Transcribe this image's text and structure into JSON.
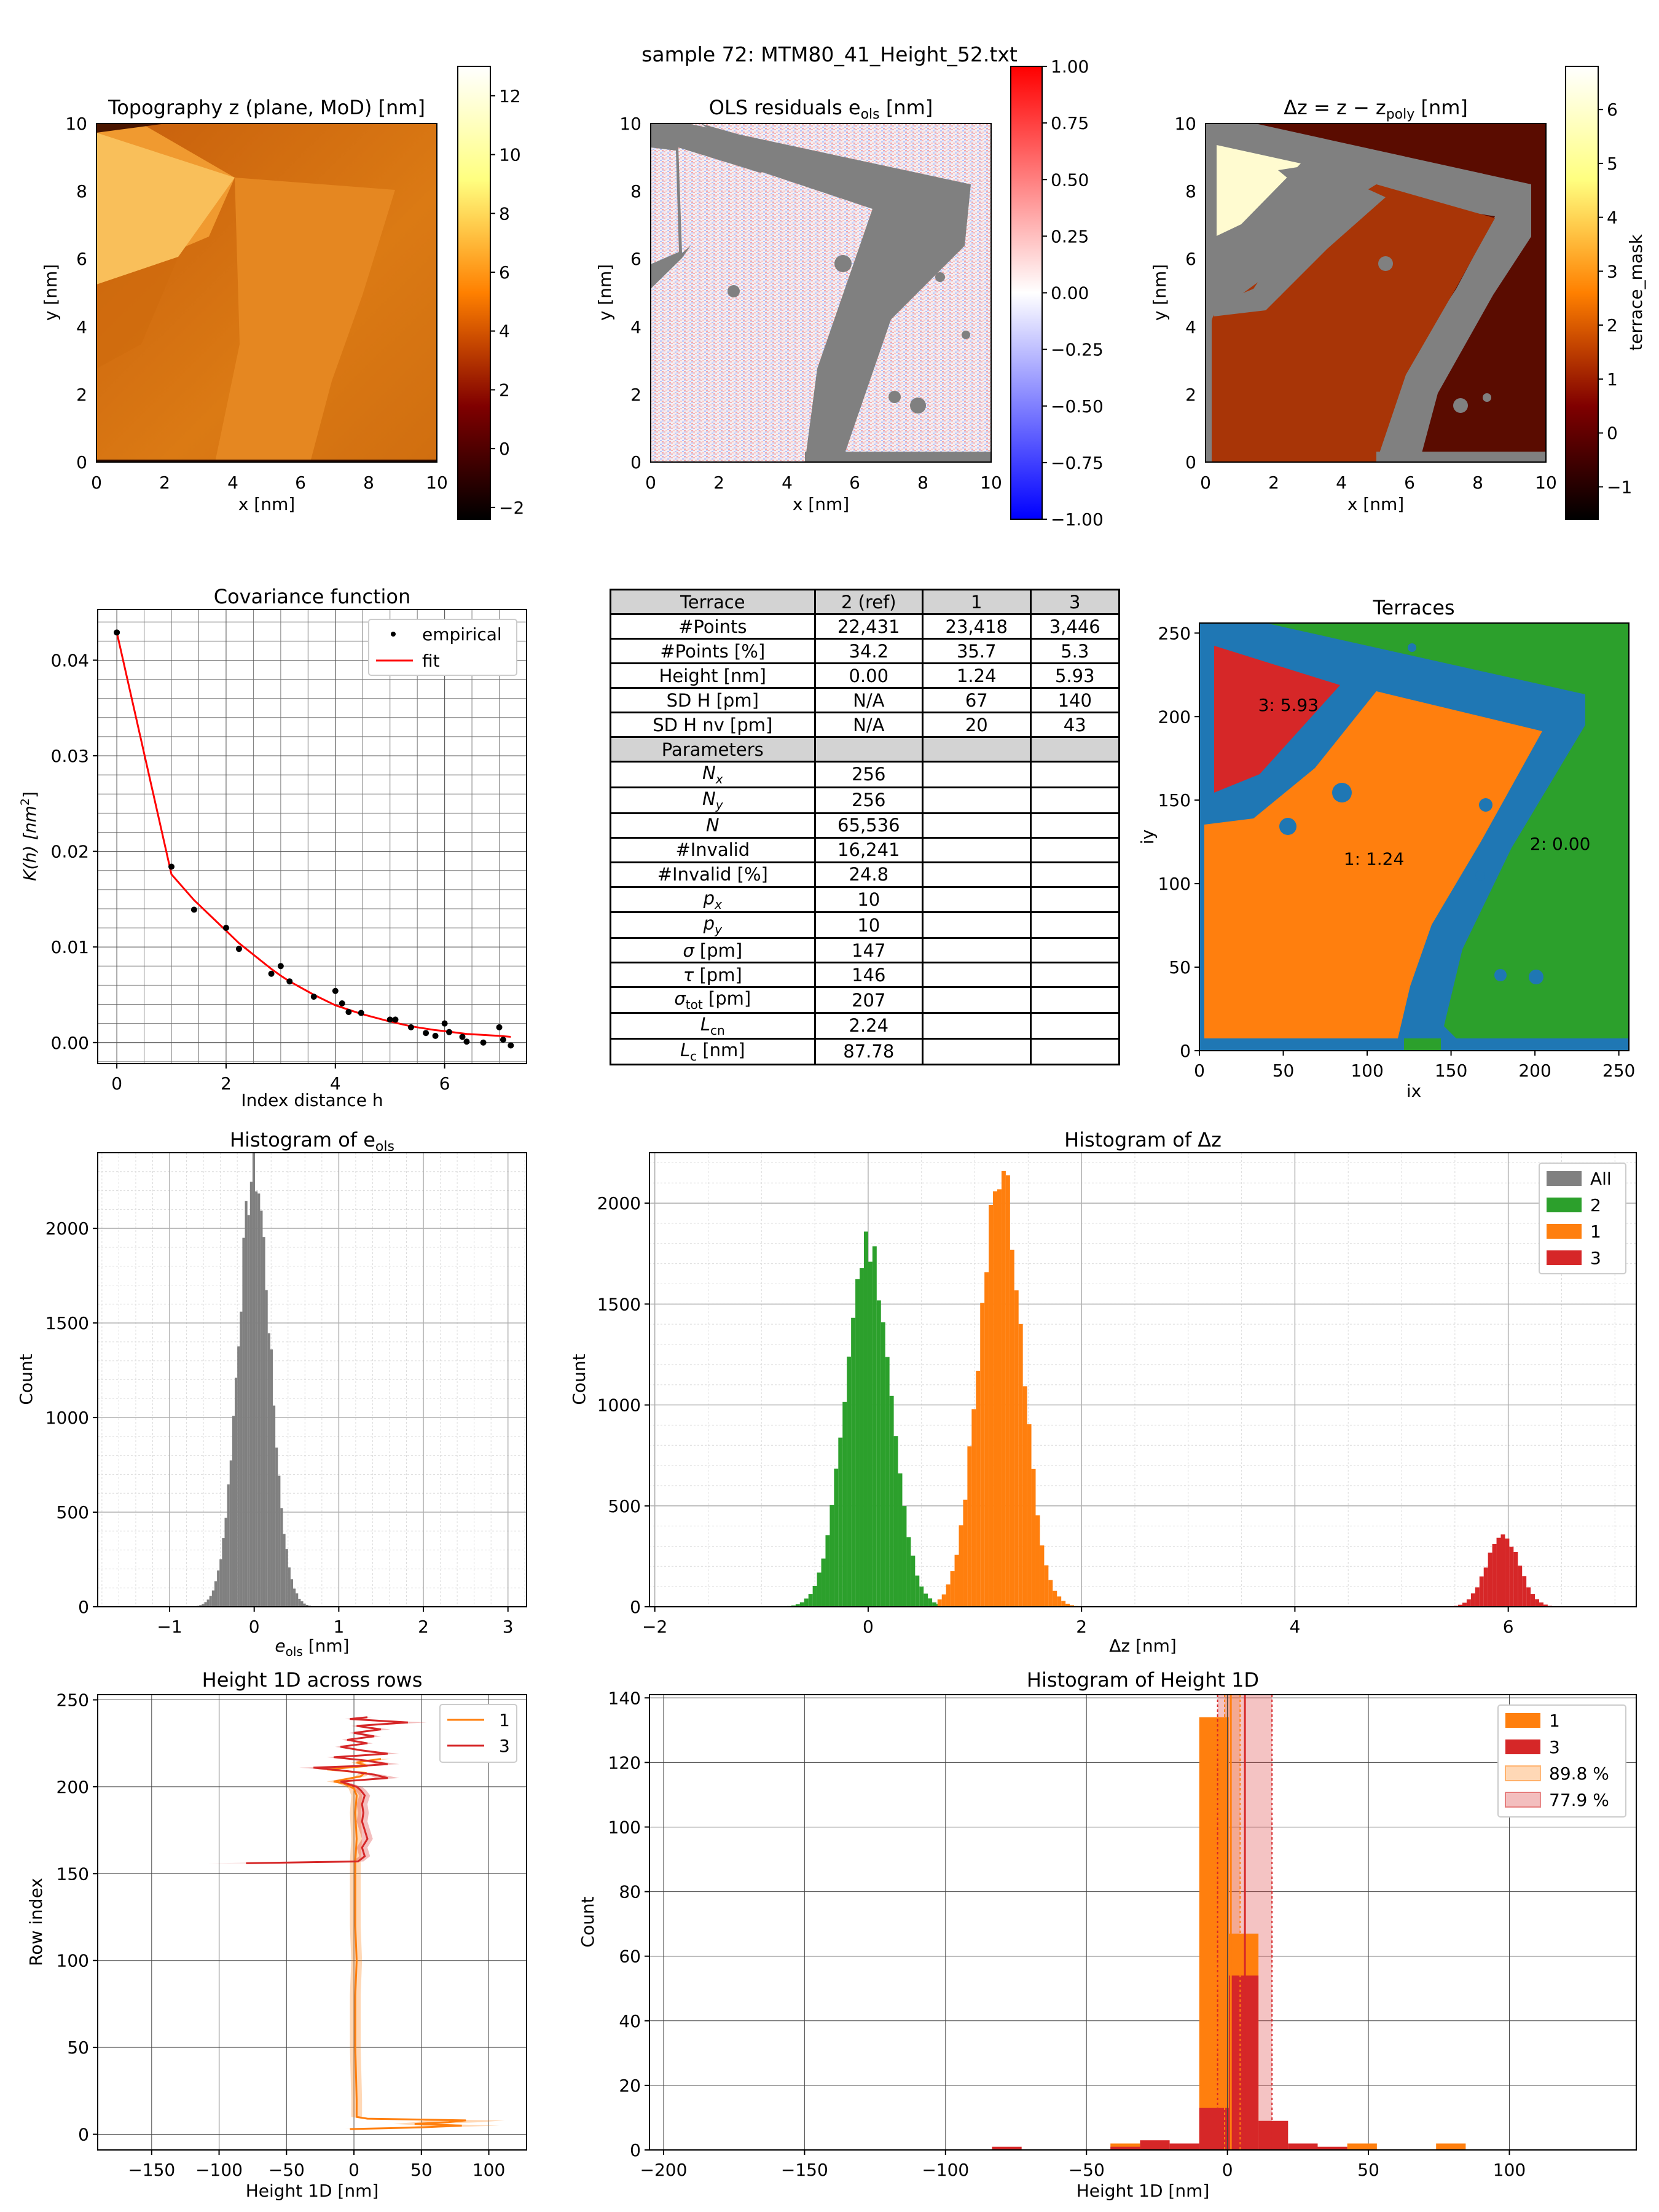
{
  "figure_title": "sample 72: MTM80_41_Height_52.txt",
  "colors": {
    "terrace_1": "#ff7f0e",
    "terrace_2": "#2ca02c",
    "terrace_3": "#d62728",
    "invalid": "#1f77b4",
    "masked": "#808080",
    "all": "#808080",
    "fit": "#ff0000"
  },
  "top_row": {
    "topography": {
      "title": "Topography z (plane, MoD) [nm]",
      "xlabel": "x [nm]",
      "ylabel": "y [nm]",
      "xticks": [
        "0",
        "2",
        "4",
        "6",
        "8",
        "10"
      ],
      "yticks": [
        "0",
        "2",
        "4",
        "6",
        "8",
        "10"
      ],
      "colorbar_ticks": [
        "−2",
        "0",
        "2",
        "4",
        "6",
        "8",
        "10",
        "12"
      ],
      "colorbar_range": [
        -2.4,
        13.0
      ]
    },
    "residuals": {
      "title_main": "OLS residuals e",
      "title_sub": "ols",
      "title_unit": " [nm]",
      "xlabel": "x [nm]",
      "ylabel": "y [nm]",
      "xticks": [
        "0",
        "2",
        "4",
        "6",
        "8",
        "10"
      ],
      "yticks": [
        "0",
        "2",
        "4",
        "6",
        "8",
        "10"
      ],
      "colorbar_ticks": [
        "1.00",
        "0.75",
        "0.50",
        "0.25",
        "0.00",
        "−0.25",
        "−0.50",
        "−0.75",
        "−1.00"
      ],
      "colorbar_range": [
        -1.0,
        1.0
      ]
    },
    "delta_z": {
      "title_main": "Δz = z − z",
      "title_sub": "poly",
      "title_unit": " [nm]",
      "xlabel": "x [nm]",
      "ylabel": "y [nm]",
      "xticks": [
        "0",
        "2",
        "4",
        "6",
        "8",
        "10"
      ],
      "yticks": [
        "0",
        "2",
        "4",
        "6",
        "8",
        "10"
      ],
      "colorbar_ticks": [
        "−1",
        "0",
        "1",
        "2",
        "3",
        "4",
        "5",
        "6"
      ],
      "colorbar_label": "terrace_mask",
      "colorbar_range": [
        -1.6,
        6.8
      ]
    }
  },
  "table": {
    "header": [
      "Terrace",
      "2 (ref)",
      "1",
      "3"
    ],
    "rows": [
      [
        "#Points",
        "22,431",
        "23,418",
        "3,446"
      ],
      [
        "#Points [%]",
        "34.2",
        "35.7",
        "5.3"
      ],
      [
        "Height [nm]",
        "0.00",
        "1.24",
        "5.93"
      ],
      [
        "SD H [pm]",
        "N/A",
        "67",
        "140"
      ],
      [
        "SD H nv [pm]",
        "N/A",
        "20",
        "43"
      ]
    ],
    "param_header": "Parameters",
    "params": [
      {
        "sym": "N",
        "sub": "x",
        "unit": "",
        "value": "256"
      },
      {
        "sym": "N",
        "sub": "y",
        "unit": "",
        "value": "256"
      },
      {
        "sym": "N",
        "sub": "",
        "unit": "",
        "value": "65,536"
      },
      {
        "sym": "",
        "sub": "",
        "unit": "#Invalid",
        "value": "16,241"
      },
      {
        "sym": "",
        "sub": "",
        "unit": "#Invalid [%]",
        "value": "24.8"
      },
      {
        "sym": "p",
        "sub": "x",
        "unit": "",
        "value": "10"
      },
      {
        "sym": "p",
        "sub": "y",
        "unit": "",
        "value": "10"
      },
      {
        "sym": "σ",
        "sub": "",
        "unit": " [pm]",
        "value": "147"
      },
      {
        "sym": "τ",
        "sub": "",
        "unit": " [pm]",
        "value": "146"
      },
      {
        "sym": "σ",
        "sub": "tot",
        "unit": " [pm]",
        "value": "207"
      },
      {
        "sym": "L",
        "sub": "cn",
        "unit": "",
        "value": "2.24"
      },
      {
        "sym": "L",
        "sub": "c",
        "unit": " [nm]",
        "value": "87.78"
      }
    ]
  },
  "chart_data": [
    {
      "id": "covariance",
      "type": "scatter",
      "title": "Covariance function",
      "xlabel": "Index distance h",
      "ylabel_main": "K(h) [nm",
      "ylabel_sup": "2",
      "ylabel_end": "]",
      "xlim": [
        -0.35,
        7.5
      ],
      "ylim": [
        -0.0022,
        0.0453
      ],
      "xticks": [
        0,
        2,
        4,
        6
      ],
      "yticks": [
        0.0,
        0.01,
        0.02,
        0.03,
        0.04
      ],
      "ytick_labels": [
        "0.00",
        "0.01",
        "0.02",
        "0.03",
        "0.04"
      ],
      "legend": [
        "empirical",
        "fit"
      ],
      "legend_position": "top-right",
      "empirical": {
        "x": [
          0,
          1,
          1.414,
          2,
          2.236,
          2.828,
          3,
          3.162,
          3.606,
          4,
          4.123,
          4.243,
          4.472,
          5,
          5.099,
          5.385,
          5.657,
          5.831,
          6,
          6.083,
          6.325,
          6.403,
          6.708,
          7,
          7.071,
          7.211
        ],
        "y": [
          0.0429,
          0.0184,
          0.0139,
          0.012,
          0.0098,
          0.0072,
          0.008,
          0.0064,
          0.0048,
          0.0054,
          0.0041,
          0.0032,
          0.0031,
          0.0024,
          0.0024,
          0.0016,
          0.001,
          0.0007,
          0.002,
          0.0011,
          0.0006,
          0.0001,
          0.0,
          0.0016,
          0.0003,
          -0.0003
        ]
      },
      "fit": {
        "x": [
          0,
          1,
          1.414,
          2,
          2.236,
          2.828,
          3,
          3.162,
          3.606,
          4,
          4.472,
          5,
          5.385,
          5.831,
          6,
          6.403,
          7,
          7.211
        ],
        "y": [
          0.0429,
          0.0176,
          0.0149,
          0.0117,
          0.0104,
          0.0077,
          0.007,
          0.0064,
          0.005,
          0.0039,
          0.003,
          0.0022,
          0.0017,
          0.0013,
          0.0012,
          0.0009,
          0.0007,
          0.0006
        ]
      }
    },
    {
      "id": "terraces",
      "type": "heatmap",
      "title": "Terraces",
      "xlabel": "ix",
      "ylabel": "iy",
      "xlim": [
        0,
        256
      ],
      "ylim": [
        0,
        256
      ],
      "xticks": [
        0,
        50,
        100,
        150,
        200,
        250
      ],
      "yticks": [
        0,
        50,
        100,
        150,
        200,
        250
      ],
      "labels": [
        {
          "text": "3: 5.93",
          "x": 35,
          "y": 207
        },
        {
          "text": "1: 1.24",
          "x": 86,
          "y": 115
        },
        {
          "text": "2: 0.00",
          "x": 197,
          "y": 124
        }
      ]
    },
    {
      "id": "hist_eols",
      "type": "bar",
      "title_main": "Histogram of e",
      "title_sub": "ols",
      "xlabel_main": "e",
      "xlabel_sub": "ols",
      "xlabel_unit": " [nm]",
      "ylabel": "Count",
      "xlim": [
        -1.85,
        3.22
      ],
      "ylim": [
        0,
        2400
      ],
      "xticks": [
        -1,
        0,
        1,
        2,
        3
      ],
      "xtick_labels": [
        "−1",
        "0",
        "1",
        "2",
        "3"
      ],
      "yticks": [
        0,
        500,
        1000,
        1500,
        2000
      ],
      "series": [
        {
          "name": "All",
          "color": "#808080",
          "mean": 0.0,
          "sd": 0.19,
          "peak": 2300,
          "range": [
            -0.8,
            0.9
          ]
        }
      ]
    },
    {
      "id": "hist_dz",
      "type": "bar",
      "title": "Histogram of Δz",
      "xlabel": "Δz [nm]",
      "ylabel": "Count",
      "xlim": [
        -2.05,
        7.2
      ],
      "ylim": [
        0,
        2250
      ],
      "xticks": [
        -2,
        0,
        2,
        4,
        6
      ],
      "xtick_labels": [
        "−2",
        "0",
        "2",
        "4",
        "6"
      ],
      "yticks": [
        0,
        500,
        1000,
        1500,
        2000
      ],
      "legend": [
        "All",
        "2",
        "1",
        "3"
      ],
      "legend_position": "top-right",
      "series": [
        {
          "name": "2",
          "color": "#2ca02c",
          "mean": 0.0,
          "sd": 0.21,
          "peak": 1800,
          "range": [
            -0.8,
            0.65
          ]
        },
        {
          "name": "1",
          "color": "#ff7f0e",
          "mean": 1.24,
          "sd": 0.2,
          "peak": 2150,
          "range": [
            0.65,
            2.0
          ]
        },
        {
          "name": "3",
          "color": "#d62728",
          "mean": 5.95,
          "sd": 0.15,
          "peak": 360,
          "range": [
            5.45,
            6.45
          ]
        }
      ]
    },
    {
      "id": "height1d_rows",
      "type": "line",
      "title": "Height 1D across rows",
      "xlabel": "Height 1D [nm]",
      "ylabel": "Row index",
      "xlim": [
        -190,
        128
      ],
      "ylim": [
        -9,
        253
      ],
      "xticks": [
        -150,
        -100,
        -50,
        0,
        50,
        100
      ],
      "xtick_labels": [
        "−150",
        "−100",
        "−50",
        "0",
        "50",
        "100"
      ],
      "yticks": [
        0,
        50,
        100,
        150,
        200,
        250
      ],
      "legend": [
        "1",
        "3"
      ],
      "legend_position": "top-right",
      "series": [
        {
          "name": "1",
          "color": "#ff7f0e",
          "rows": [
            3,
            4,
            5,
            6,
            7,
            8,
            9,
            10,
            20,
            50,
            80,
            100,
            120,
            150,
            157,
            170,
            185,
            195,
            199,
            202,
            203,
            206,
            208,
            210,
            212,
            214,
            216
          ],
          "values": [
            -3,
            50,
            80,
            45,
            70,
            83,
            10,
            2,
            2,
            1,
            1,
            2,
            1,
            1,
            1,
            2,
            1,
            2,
            0,
            -8,
            -15,
            5,
            8,
            -20,
            10,
            2,
            20
          ]
        },
        {
          "name": "3",
          "color": "#d62728",
          "rows": [
            156,
            157,
            160,
            165,
            170,
            175,
            180,
            185,
            190,
            195,
            198,
            200,
            203,
            205,
            207,
            209,
            211,
            212,
            213,
            215,
            217,
            219,
            221,
            223,
            225,
            227,
            229,
            231,
            233,
            235,
            237,
            239,
            240
          ],
          "values": [
            -80,
            3,
            8,
            6,
            10,
            8,
            6,
            7,
            6,
            8,
            5,
            2,
            -10,
            25,
            15,
            -5,
            -30,
            5,
            25,
            10,
            -15,
            25,
            5,
            -10,
            10,
            -5,
            15,
            0,
            20,
            2,
            40,
            -3,
            10
          ]
        }
      ]
    },
    {
      "id": "hist_height1d",
      "type": "bar",
      "title": "Histogram of Height 1D",
      "xlabel": "Height 1D [nm]",
      "ylabel": "Count",
      "xlim": [
        -205,
        145
      ],
      "ylim": [
        0,
        141
      ],
      "xticks": [
        -200,
        -150,
        -100,
        -50,
        0,
        50,
        100
      ],
      "xtick_labels": [
        "−200",
        "−150",
        "−100",
        "−50",
        "0",
        "50",
        "100"
      ],
      "yticks": [
        0,
        20,
        40,
        60,
        80,
        100,
        120,
        140
      ],
      "legend": [
        "1",
        "3",
        "89.8 %",
        "77.9 %"
      ],
      "legend_position": "top-right",
      "bin_edges": [
        -83.5,
        -73,
        -62.5,
        -52,
        -41.5,
        -31,
        -20.5,
        -10,
        0.5,
        11,
        21.5,
        32,
        42.5,
        53,
        63.5,
        74,
        84.5
      ],
      "series": [
        {
          "name": "1",
          "color": "#ff7f0e",
          "counts": [
            0,
            0,
            0,
            0,
            2,
            0,
            0,
            134,
            67,
            0,
            0,
            0,
            2,
            0,
            0,
            2
          ]
        },
        {
          "name": "3",
          "color": "#d62728",
          "counts": [
            1,
            0,
            0,
            0,
            1,
            3,
            2,
            13,
            54,
            9,
            2,
            1,
            0,
            0,
            0,
            0
          ]
        }
      ],
      "bands": [
        {
          "name": "89.8 %",
          "color": "#ff7f0e",
          "lo": -1.0,
          "hi": 4.5,
          "center": 1.2
        },
        {
          "name": "77.9 %",
          "color": "#d62728",
          "lo": -3.5,
          "hi": 15.8,
          "center": 6.2
        }
      ]
    }
  ]
}
